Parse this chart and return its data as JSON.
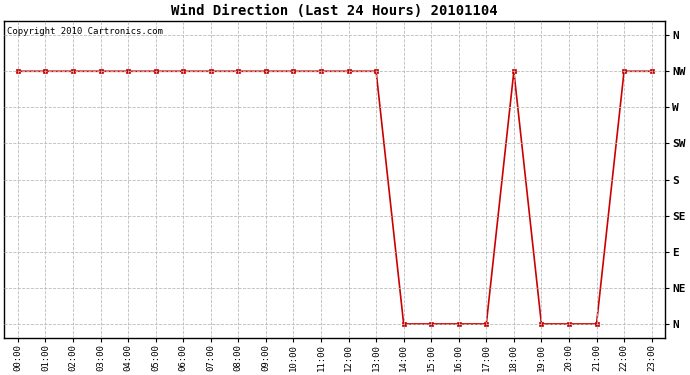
{
  "title": "Wind Direction (Last 24 Hours) 20101104",
  "copyright_text": "Copyright 2010 Cartronics.com",
  "background_color": "#ffffff",
  "line_color": "#cc0000",
  "grid_color": "#bbbbbb",
  "ytick_labels": [
    "N",
    "NE",
    "E",
    "SE",
    "S",
    "SW",
    "W",
    "NW",
    "N"
  ],
  "ytick_values": [
    0,
    1,
    2,
    3,
    4,
    5,
    6,
    7,
    8
  ],
  "hours": [
    0,
    1,
    2,
    3,
    4,
    5,
    6,
    7,
    8,
    9,
    10,
    11,
    12,
    13,
    14,
    15,
    16,
    17,
    18,
    19,
    20,
    21,
    22,
    23
  ],
  "wind_values": [
    7,
    7,
    7,
    7,
    7,
    7,
    7,
    7,
    7,
    7,
    7,
    7,
    7,
    7,
    0,
    0,
    0,
    0,
    7,
    0,
    0,
    0,
    7,
    7
  ],
  "xlim": [
    -0.5,
    23.5
  ],
  "ylim": [
    -0.4,
    8.4
  ],
  "figwidth": 6.9,
  "figheight": 3.75,
  "dpi": 100
}
